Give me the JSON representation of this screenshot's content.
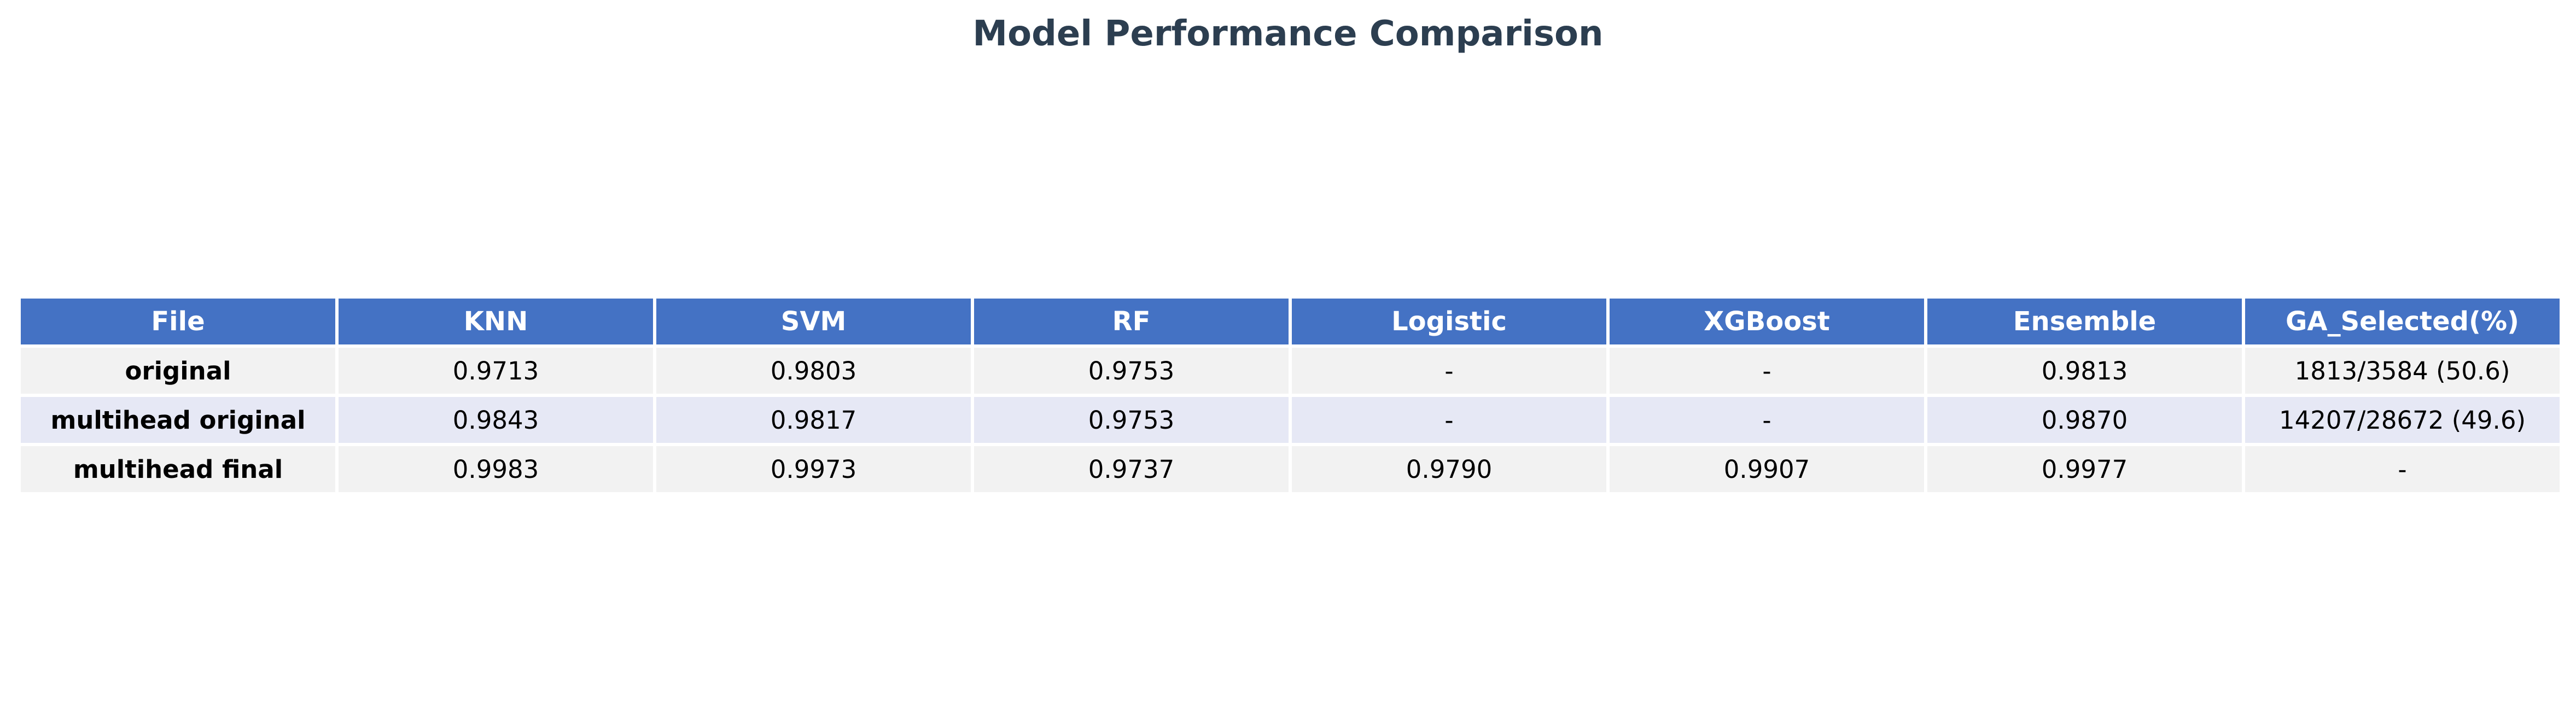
{
  "title": "Model Performance Comparison",
  "chart_data": {
    "type": "table",
    "title": "Model Performance Comparison",
    "columns": [
      "File",
      "KNN",
      "SVM",
      "RF",
      "Logistic",
      "XGBoost",
      "Ensemble",
      "GA_Selected(%)"
    ],
    "rows": [
      [
        "original",
        "0.9713",
        "0.9803",
        "0.9753",
        "-",
        "-",
        "0.9813",
        "1813/3584 (50.6)"
      ],
      [
        "multihead original",
        "0.9843",
        "0.9817",
        "0.9753",
        "-",
        "-",
        "0.9870",
        "14207/28672 (49.6)"
      ],
      [
        "multihead final",
        "0.9983",
        "0.9973",
        "0.9737",
        "0.9790",
        "0.9907",
        "0.9977",
        "-"
      ]
    ],
    "header_color": "#4472c4",
    "header_text_color": "#ffffff",
    "row_colors": [
      "#f2f2f2",
      "#e6e8f5"
    ],
    "title_color": "#2c3e50"
  }
}
